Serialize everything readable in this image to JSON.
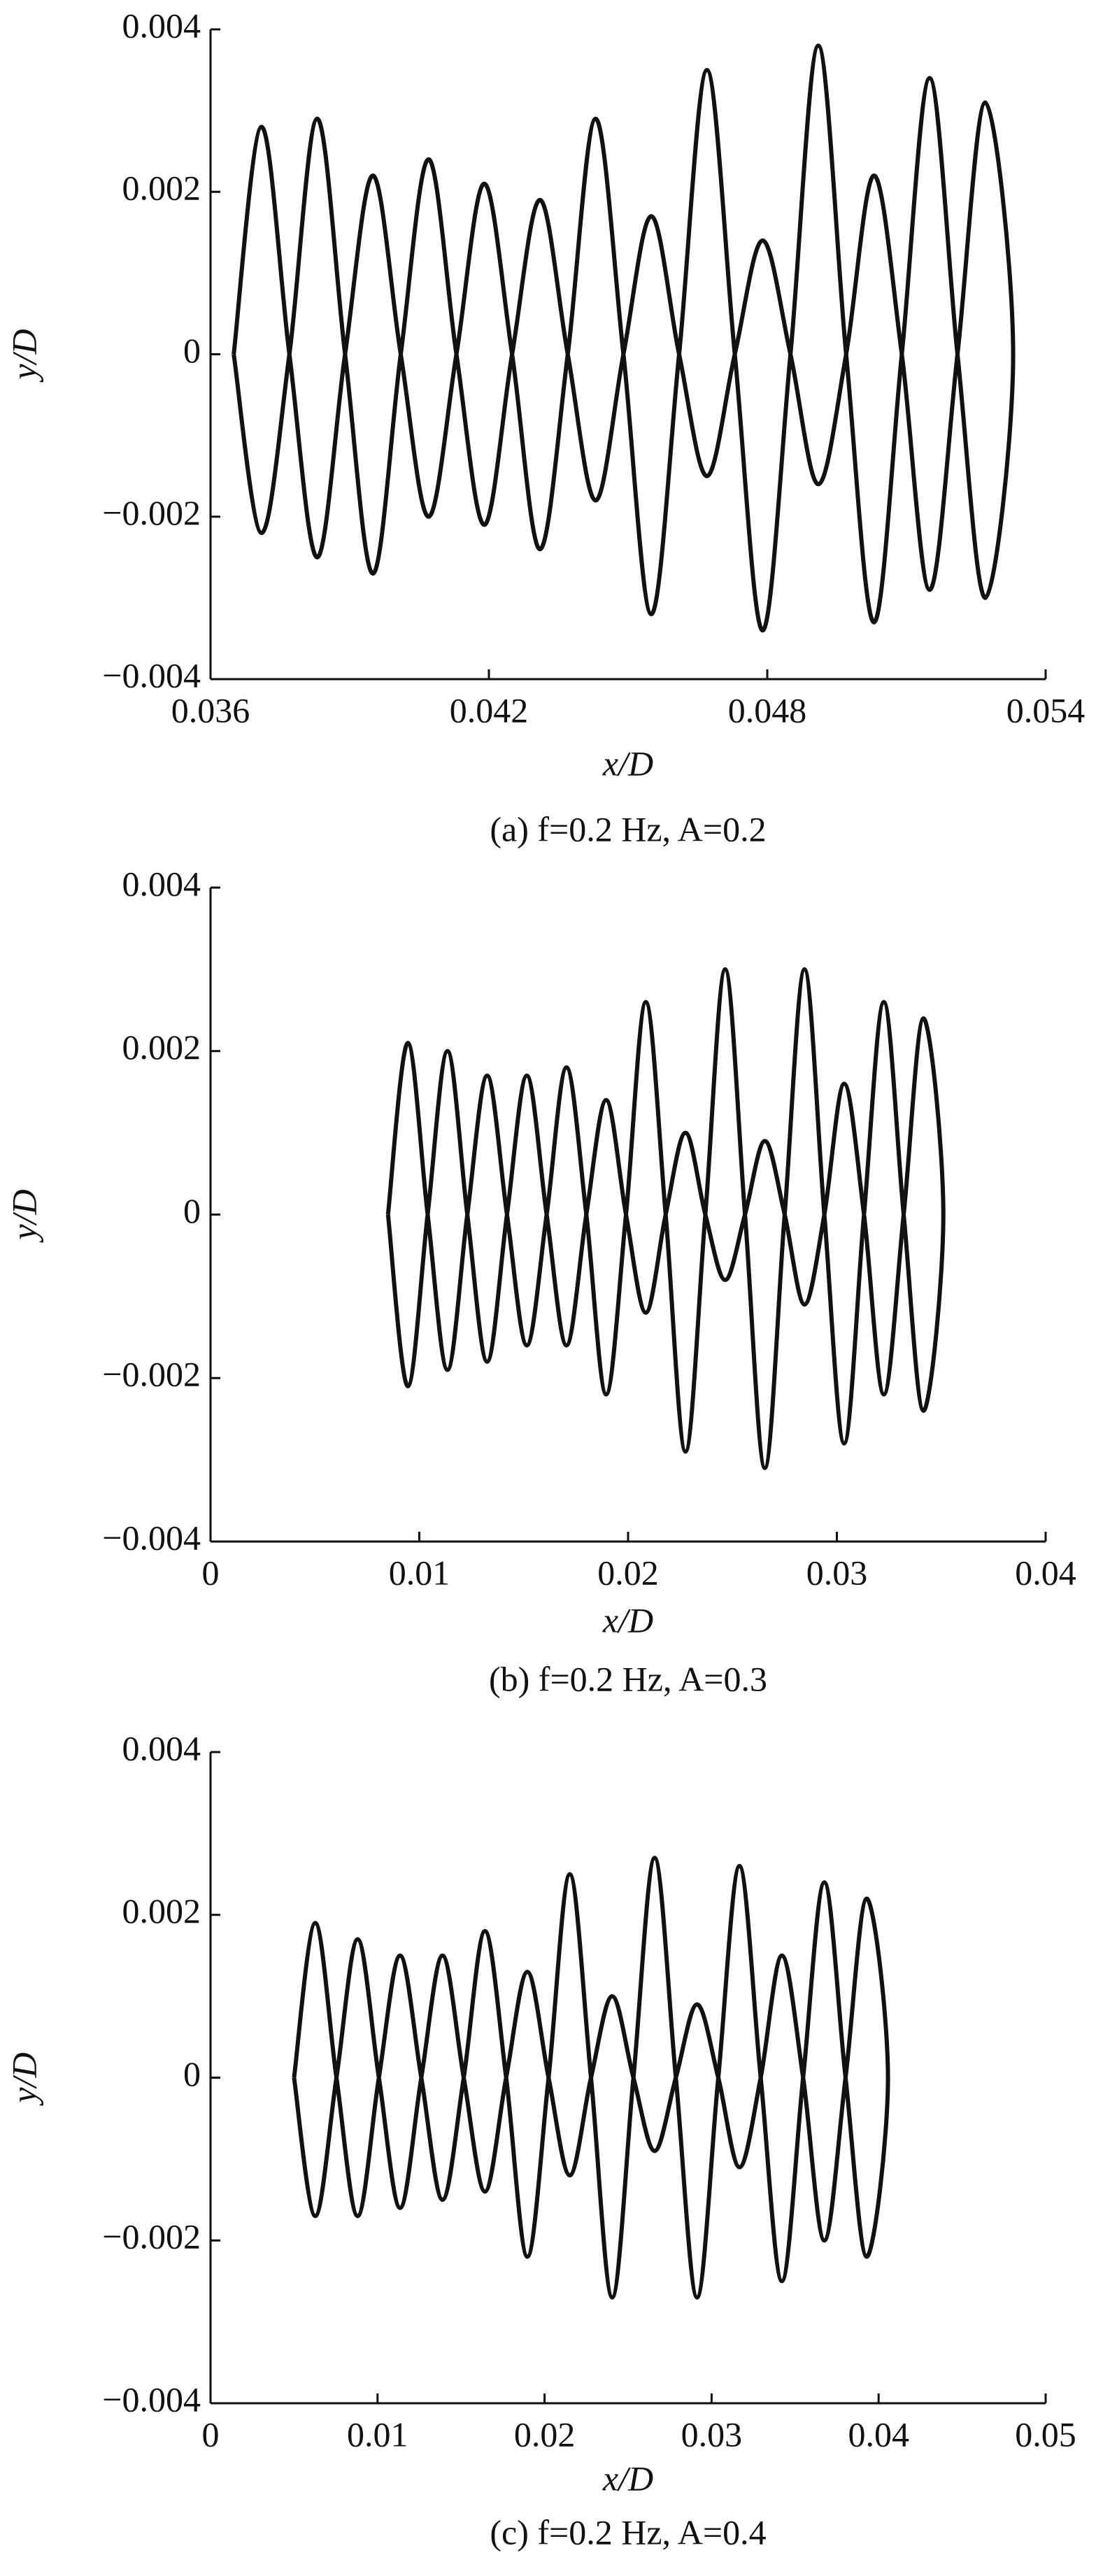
{
  "chart_data": [
    {
      "type": "line",
      "color": "#111111",
      "x": [
        0.0365,
        0.0371,
        0.0377,
        0.0383,
        0.0389,
        0.0395,
        0.0401,
        0.0407,
        0.0413,
        0.0419,
        0.0425,
        0.0431,
        0.0437,
        0.0443,
        0.0449,
        0.0455,
        0.0461,
        0.0467,
        0.0473,
        0.0479,
        0.0485,
        0.0491,
        0.0497,
        0.0503,
        0.0509,
        0.0515,
        0.0521,
        0.0527,
        0.0533,
        0.0527,
        0.0521,
        0.0515,
        0.0509,
        0.0503,
        0.0497,
        0.0491,
        0.0485,
        0.0479,
        0.0473,
        0.0467,
        0.0461,
        0.0455,
        0.0449,
        0.0443,
        0.0437,
        0.0431,
        0.0425,
        0.0419,
        0.0413,
        0.0407,
        0.0401,
        0.0395,
        0.0389,
        0.0383,
        0.0377,
        0.0371,
        0.0365
      ],
      "values": [
        0,
        0.0028,
        0,
        -0.0025,
        0,
        0.0022,
        0,
        -0.002,
        0,
        0.0021,
        0,
        -0.0024,
        0,
        0.0029,
        0,
        -0.0032,
        0,
        0.0035,
        0,
        -0.0034,
        0,
        0.0038,
        0,
        -0.0033,
        0,
        0.0034,
        0,
        -0.003,
        0,
        0.0031,
        0,
        -0.0029,
        0,
        0.0022,
        0,
        -0.0016,
        0,
        0.0014,
        0,
        -0.0015,
        0,
        0.0017,
        0,
        -0.0018,
        0,
        0.0019,
        0,
        -0.0021,
        0,
        0.0024,
        0,
        -0.0027,
        0,
        0.0029,
        0,
        -0.0022,
        0
      ],
      "xlim": [
        0.036,
        0.054
      ],
      "xticks": [
        0.036,
        0.042,
        0.048,
        0.054
      ],
      "ylim": [
        -0.004,
        0.004
      ],
      "yticks": [
        {
          "value": -0.004,
          "label": "−0.004"
        },
        {
          "value": -0.002,
          "label": "−0.002"
        },
        0,
        0.002,
        0.004
      ],
      "xlabel": "x/D",
      "ylabel": "y/D",
      "caption": "(a)  f=0.2 Hz,  A=0.2"
    },
    {
      "type": "line",
      "color": "#111111",
      "x": [
        0.0085,
        0.00945,
        0.0104,
        0.01135,
        0.0123,
        0.01325,
        0.0142,
        0.01515,
        0.0161,
        0.01705,
        0.018,
        0.01895,
        0.0199,
        0.02085,
        0.0218,
        0.02275,
        0.0237,
        0.02465,
        0.0256,
        0.02655,
        0.0275,
        0.02845,
        0.0294,
        0.03035,
        0.0313,
        0.03225,
        0.0332,
        0.03415,
        0.0351,
        0.03415,
        0.0332,
        0.03225,
        0.0313,
        0.03035,
        0.0294,
        0.02845,
        0.0275,
        0.02655,
        0.0256,
        0.02465,
        0.0237,
        0.02275,
        0.0218,
        0.02085,
        0.0199,
        0.01895,
        0.018,
        0.01705,
        0.0161,
        0.01515,
        0.0142,
        0.01325,
        0.0123,
        0.01135,
        0.0104,
        0.00945,
        0.0085
      ],
      "values": [
        0,
        0.0021,
        0,
        -0.0019,
        0,
        0.0017,
        0,
        -0.0016,
        0,
        0.0018,
        0,
        -0.0022,
        0,
        0.0026,
        0,
        -0.0029,
        0,
        0.003,
        0,
        -0.0031,
        0,
        0.003,
        0,
        -0.0028,
        0,
        0.0026,
        0,
        -0.0024,
        0,
        0.0024,
        0,
        -0.0022,
        0,
        0.0016,
        0,
        -0.0011,
        0,
        0.0009,
        0,
        -0.0008,
        0,
        0.001,
        0,
        -0.0012,
        0,
        0.0014,
        0,
        -0.0016,
        0,
        0.0017,
        0,
        -0.0018,
        0,
        0.002,
        0,
        -0.0021,
        0
      ],
      "xlim": [
        0,
        0.04
      ],
      "xticks": [
        0,
        0.01,
        0.02,
        0.03,
        0.04
      ],
      "ylim": [
        -0.004,
        0.004
      ],
      "yticks": [
        {
          "value": -0.004,
          "label": "−0.004"
        },
        {
          "value": -0.002,
          "label": "−0.002"
        },
        0,
        0.002,
        0.004
      ],
      "xlabel": "x/D",
      "ylabel": "y/D",
      "caption": "(b)  f=0.2 Hz,  A=0.3"
    },
    {
      "type": "line",
      "color": "#111111",
      "x": [
        0.005,
        0.00627,
        0.00754,
        0.00881,
        0.01008,
        0.01135,
        0.01262,
        0.01389,
        0.01516,
        0.01643,
        0.0177,
        0.01897,
        0.02024,
        0.02151,
        0.02278,
        0.02405,
        0.02532,
        0.02659,
        0.02786,
        0.02913,
        0.0304,
        0.03167,
        0.03294,
        0.03421,
        0.03548,
        0.03675,
        0.03802,
        0.03929,
        0.04056,
        0.03929,
        0.03802,
        0.03675,
        0.03548,
        0.03421,
        0.03294,
        0.03167,
        0.0304,
        0.02913,
        0.02786,
        0.02659,
        0.02532,
        0.02405,
        0.02278,
        0.02151,
        0.02024,
        0.01897,
        0.0177,
        0.01643,
        0.01516,
        0.01389,
        0.01262,
        0.01135,
        0.01008,
        0.00881,
        0.00754,
        0.00627,
        0.005
      ],
      "values": [
        0,
        0.0019,
        0,
        -0.0017,
        0,
        0.0015,
        0,
        -0.0015,
        0,
        0.0018,
        0,
        -0.0022,
        0,
        0.0025,
        0,
        -0.0027,
        0,
        0.0027,
        0,
        -0.0027,
        0,
        0.0026,
        0,
        -0.0025,
        0,
        0.0024,
        0,
        -0.0022,
        0,
        0.0022,
        0,
        -0.002,
        0,
        0.0015,
        0,
        -0.0011,
        0,
        0.0009,
        0,
        -0.0009,
        0,
        0.001,
        0,
        -0.0012,
        0,
        0.0013,
        0,
        -0.0014,
        0,
        0.0015,
        0,
        -0.0016,
        0,
        0.0017,
        0,
        -0.0017,
        0
      ],
      "xlim": [
        0,
        0.05
      ],
      "xticks": [
        0,
        0.01,
        0.02,
        0.03,
        0.04,
        0.05
      ],
      "ylim": [
        -0.004,
        0.004
      ],
      "yticks": [
        {
          "value": -0.004,
          "label": "−0.004"
        },
        {
          "value": -0.002,
          "label": "−0.002"
        },
        0,
        0.002,
        0.004
      ],
      "xlabel": "x/D",
      "ylabel": "y/D",
      "caption": "(c)  f=0.2 Hz,  A=0.4"
    }
  ]
}
